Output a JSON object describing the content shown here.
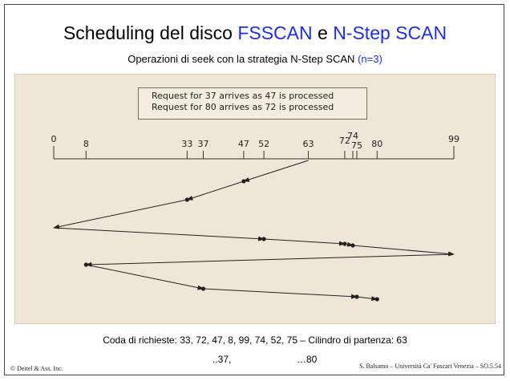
{
  "slide": {
    "title_prefix": "Scheduling del disco ",
    "title_fsscan": "FSSCAN",
    "title_and": " e ",
    "title_nstep": "N-Step SCAN",
    "subtitle_text": "Operazioni di seek con la strategia  N-Step SCAN  ",
    "subtitle_n": "(n=3)",
    "arrival_line_1": "Request for 37 arrives as 47 is processed",
    "arrival_line_2": "Request for 80 arrives as 72 is processed",
    "queue_text": "Coda di richieste: 33, 72, 47, 8, 99, 74, 52, 75 – Cilindro di partenza: 63",
    "arrival_marker_1": "..37,",
    "arrival_marker_2": "…80",
    "credit_left": "© Deitel & Ass. Inc.",
    "credit_right": "S. Balsamo – Università Ca' Foscari Venezia – SO.5.54"
  },
  "chart_data": {
    "type": "line",
    "title": "",
    "xlabel": "",
    "ylabel": "",
    "xlim": [
      0,
      99
    ],
    "axis_ticks": [
      0,
      8,
      33,
      37,
      47,
      52,
      63,
      72,
      74,
      75,
      80,
      99
    ],
    "start_cylinder": 63,
    "seek_path": [
      63,
      47,
      33,
      0,
      52,
      72,
      74,
      99,
      8,
      37,
      75,
      80
    ],
    "serviced_points": [
      47,
      33,
      52,
      72,
      74,
      8,
      37,
      75,
      80
    ],
    "turnaround_points": [
      0,
      99
    ]
  }
}
